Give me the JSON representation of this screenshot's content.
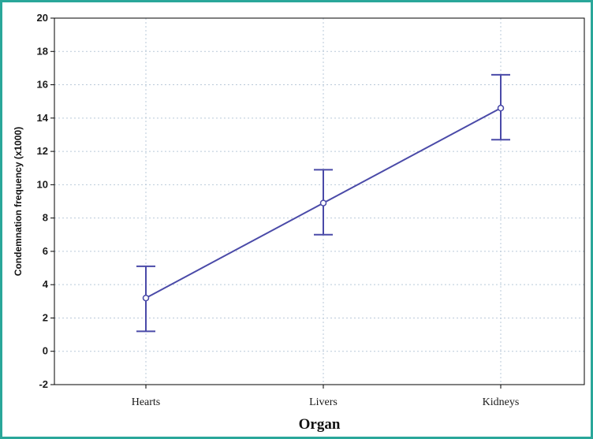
{
  "chart_data": {
    "type": "line",
    "title": "",
    "xlabel": "Organ",
    "ylabel": "Condemnation frequency (x1000)",
    "categories": [
      "Hearts",
      "Livers",
      "Kidneys"
    ],
    "series": [
      {
        "values": [
          3.2,
          8.9,
          14.6
        ],
        "error_low": [
          1.2,
          7.0,
          12.7
        ],
        "error_high": [
          5.1,
          10.9,
          16.6
        ]
      }
    ],
    "ylim": [
      -2,
      20
    ],
    "yticks": [
      "-2",
      "0",
      "2",
      "4",
      "6",
      "8",
      "10",
      "12",
      "14",
      "16",
      "18",
      "20"
    ],
    "grid": true,
    "colors": {
      "series": "#4a4aa8",
      "grid": "#b9c9d9",
      "frame": "#2aa79a"
    }
  }
}
